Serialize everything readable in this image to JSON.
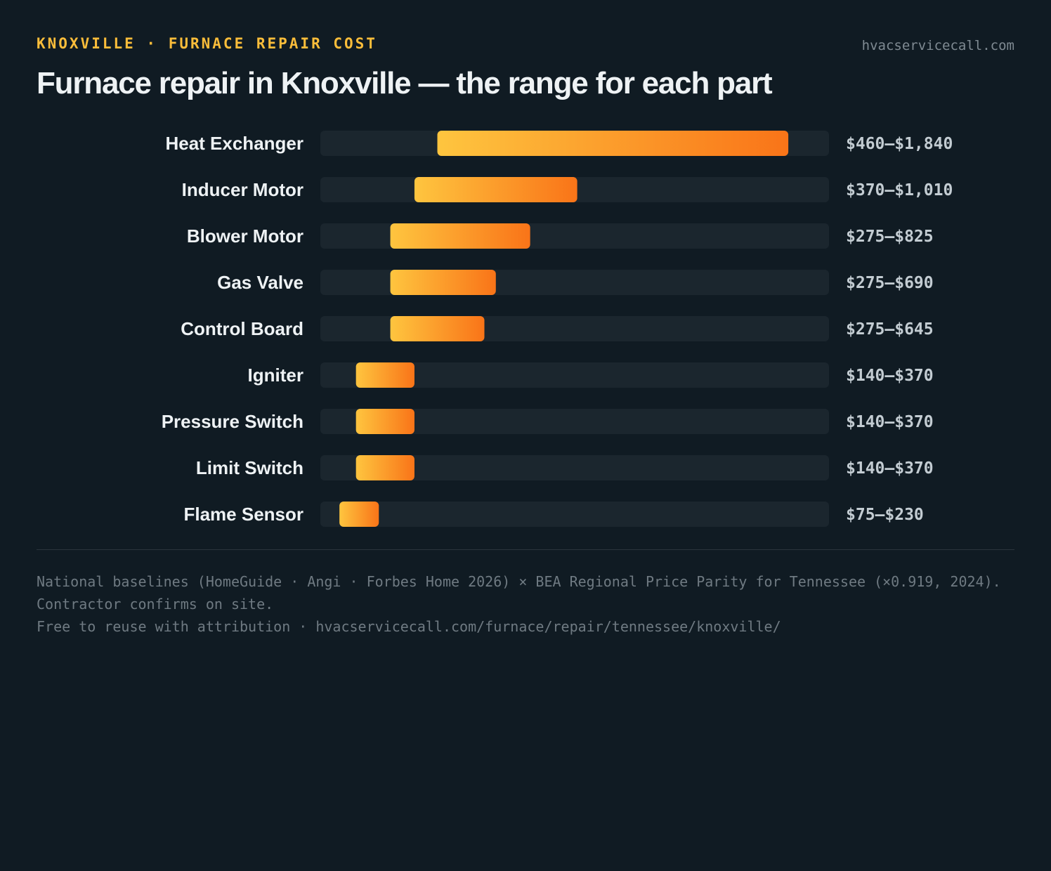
{
  "header": {
    "eyebrow": "KNOXVILLE · FURNACE REPAIR COST",
    "site": "hvacservicecall.com",
    "title": "Furnace repair in Knoxville — the range for each part"
  },
  "colors": {
    "background": "#101b23",
    "track": "#1b262e",
    "bar_start": "#fec53f",
    "bar_end": "#f97418",
    "eyebrow": "#fbbd3a",
    "label": "#eef2f4",
    "value": "#c3ccd2"
  },
  "chart_data": {
    "type": "bar",
    "orientation": "horizontal",
    "style": "range",
    "xlim": [
      0,
      2000
    ],
    "grid": false,
    "legend": "none",
    "categories": [
      "Heat Exchanger",
      "Inducer Motor",
      "Blower Motor",
      "Gas Valve",
      "Control Board",
      "Igniter",
      "Pressure Switch",
      "Limit Switch",
      "Flame Sensor"
    ],
    "low": [
      460,
      370,
      275,
      275,
      275,
      140,
      140,
      140,
      75
    ],
    "high": [
      1840,
      1010,
      825,
      690,
      645,
      370,
      370,
      370,
      230
    ],
    "labels": [
      "$460–$1,840",
      "$370–$1,010",
      "$275–$825",
      "$275–$690",
      "$275–$645",
      "$140–$370",
      "$140–$370",
      "$140–$370",
      "$75–$230"
    ]
  },
  "footer": {
    "line1": "National baselines (HomeGuide · Angi · Forbes Home 2026) × BEA Regional Price Parity for Tennessee (×0.919, 2024). Contractor confirms on site.",
    "line2": "Free to reuse with attribution · hvacservicecall.com/furnace/repair/tennessee/knoxville/"
  }
}
